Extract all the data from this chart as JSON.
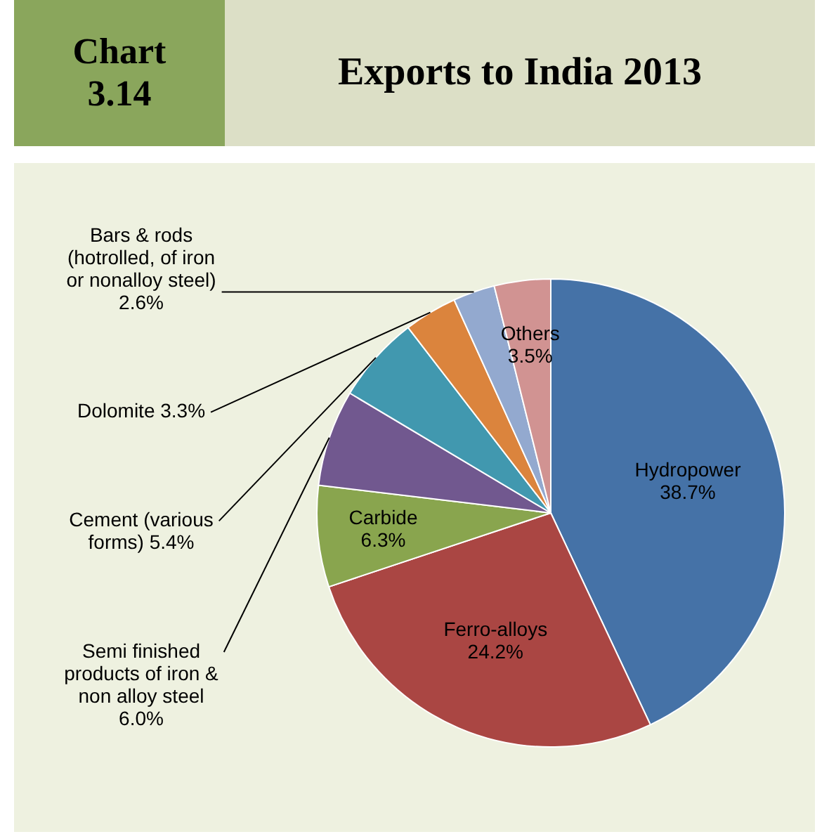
{
  "chart_data": {
    "type": "pie",
    "title": "Exports to India 2013",
    "annotations": [
      "Chart 3.14"
    ],
    "categories": [
      "Hydropower",
      "Ferro-alloys",
      "Carbide",
      "Semi finished products of iron & non alloy steel",
      "Cement (various forms)",
      "Dolomite",
      "Bars & rods (hotrolled, of iron or nonalloy steel)",
      "Others"
    ],
    "values": [
      38.7,
      24.2,
      6.3,
      6.0,
      5.4,
      3.3,
      2.6,
      3.5
    ],
    "value_labels": [
      "38.7%",
      "24.2%",
      "6.3%",
      "6.0%",
      "5.4%",
      "3.3%",
      "2.6%",
      "3.5%"
    ],
    "colors": [
      "#4572a7",
      "#aa4643",
      "#89a54e",
      "#71588f",
      "#4198af",
      "#db843d",
      "#93a9cf",
      "#d19392"
    ],
    "legend": false
  }
}
